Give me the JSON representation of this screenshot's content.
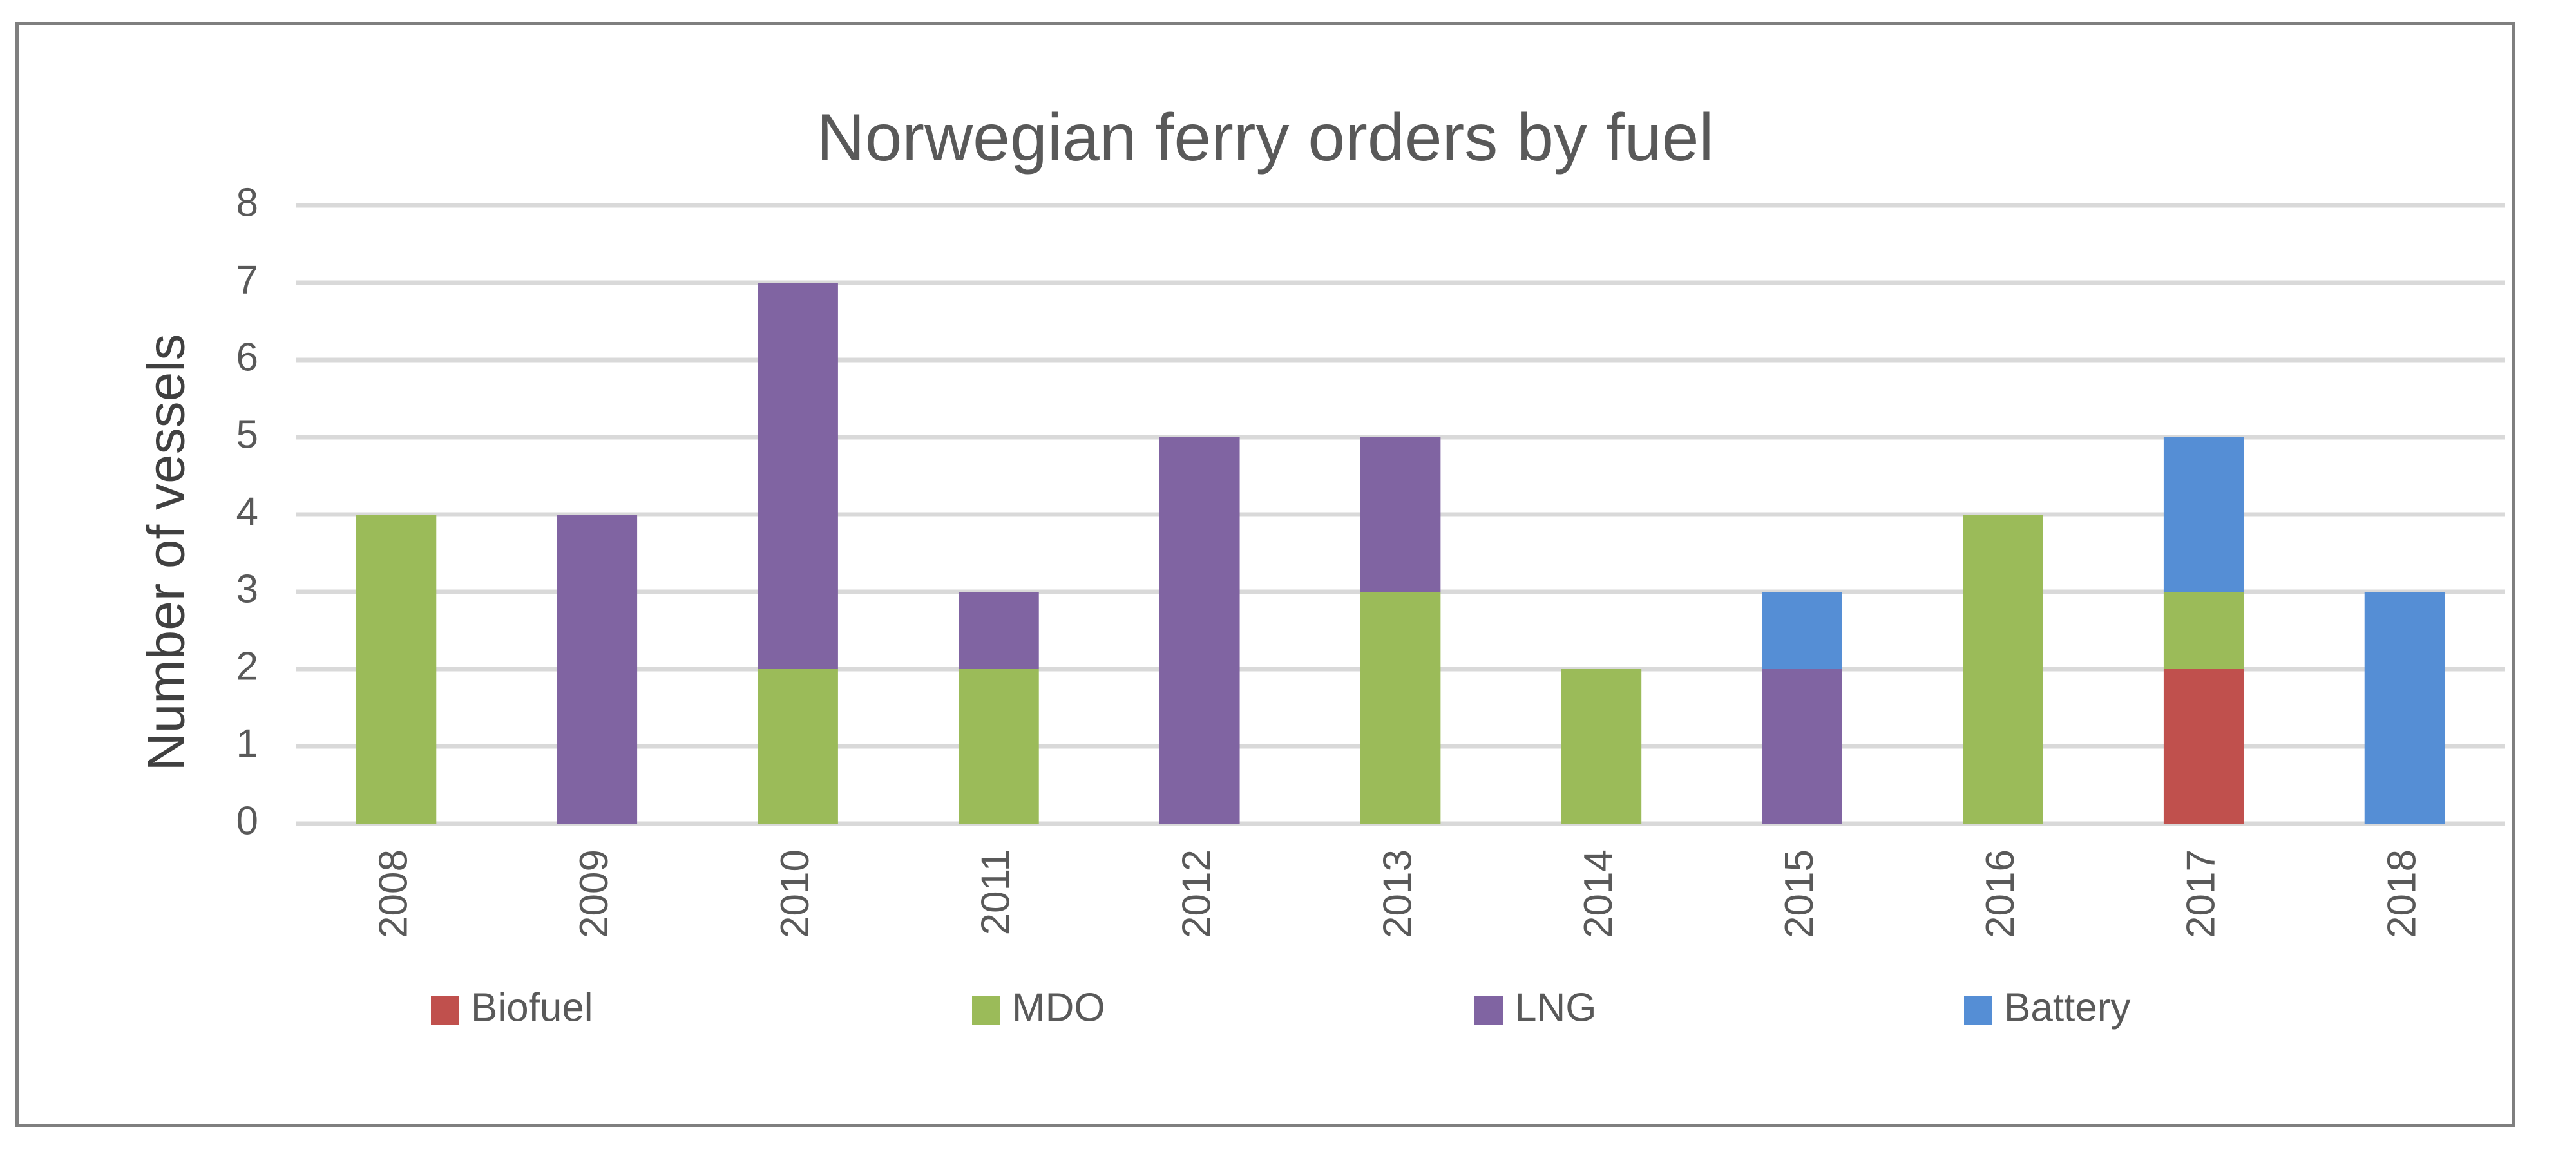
{
  "chart_data": {
    "type": "bar",
    "stacked": true,
    "title": "Norwegian ferry orders by fuel",
    "xlabel": "",
    "ylabel": "Number of vessels",
    "ylim": [
      0,
      8
    ],
    "yticks": [
      "0",
      "1",
      "2",
      "3",
      "4",
      "5",
      "6",
      "7",
      "8"
    ],
    "grid": true,
    "legend_position": "bottom",
    "categories": [
      "2008",
      "2009",
      "2010",
      "2011",
      "2012",
      "2013",
      "2014",
      "2015",
      "2016",
      "2017",
      "2018"
    ],
    "series": [
      {
        "name": "Biofuel",
        "color": "#c0504d",
        "values": [
          0,
          0,
          0,
          0,
          0,
          0,
          0,
          0,
          0,
          2,
          0
        ]
      },
      {
        "name": "MDO",
        "color": "#9bbb59",
        "values": [
          4,
          0,
          2,
          2,
          0,
          3,
          2,
          0,
          4,
          1,
          0
        ]
      },
      {
        "name": "LNG",
        "color": "#8064a2",
        "values": [
          0,
          4,
          5,
          1,
          5,
          2,
          0,
          2,
          0,
          0,
          0
        ]
      },
      {
        "name": "Battery",
        "color": "#558ed5",
        "values": [
          0,
          0,
          0,
          0,
          0,
          0,
          0,
          1,
          0,
          2,
          3
        ]
      }
    ]
  }
}
